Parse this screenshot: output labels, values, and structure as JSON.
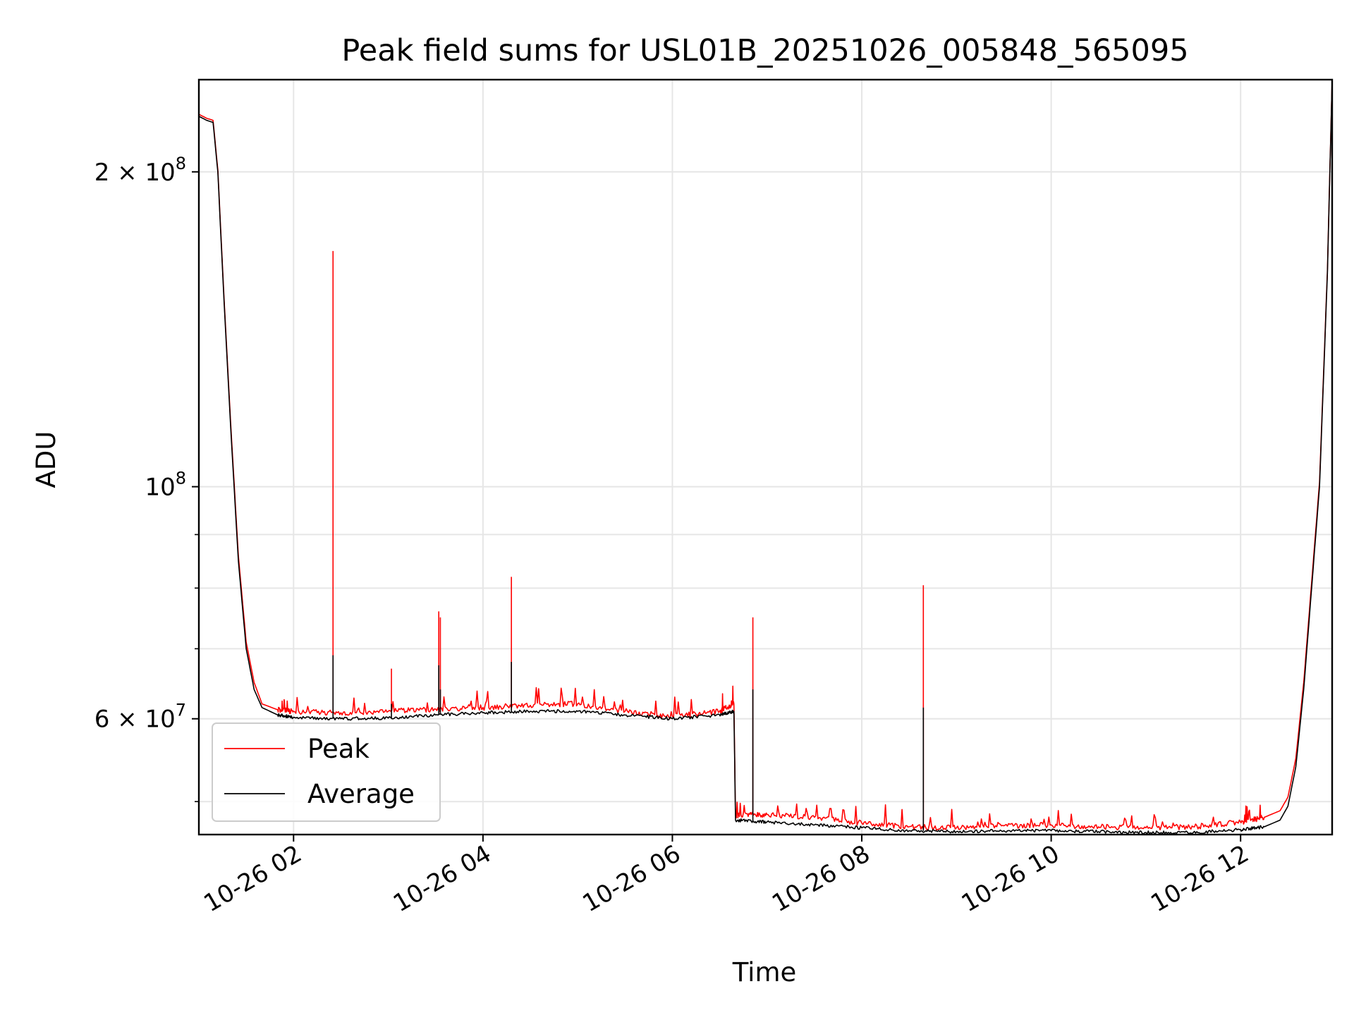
{
  "chart_data": {
    "type": "line",
    "title": "Peak field sums for USL01B_20251026_005848_565095",
    "xlabel": "Time",
    "ylabel": "ADU",
    "yscale": "log",
    "grid": true,
    "legend_placement": "lower-left",
    "xlim": [
      "2025-10-26 01:00",
      "2025-10-26 12:58"
    ],
    "ylim": [
      46500000,
      245000000
    ],
    "x_ticks": [
      {
        "value": "2025-10-26 02:00",
        "label": "10-26 02"
      },
      {
        "value": "2025-10-26 04:00",
        "label": "10-26 04"
      },
      {
        "value": "2025-10-26 06:00",
        "label": "10-26 06"
      },
      {
        "value": "2025-10-26 08:00",
        "label": "10-26 08"
      },
      {
        "value": "2025-10-26 10:00",
        "label": "10-26 10"
      },
      {
        "value": "2025-10-26 12:00",
        "label": "10-26 12"
      }
    ],
    "y_major_ticks": [
      {
        "value": 60000000,
        "base": "6",
        "exp": "7"
      },
      {
        "value": 100000000,
        "base": "",
        "exp": "8"
      },
      {
        "value": 200000000,
        "base": "2",
        "exp": "8"
      }
    ],
    "y_minor_ticks": [
      50000000,
      70000000,
      80000000,
      90000000,
      300000000
    ],
    "colors": {
      "peak": "#ff0000",
      "average": "#000000"
    },
    "series": [
      {
        "name": "Average",
        "key": "average",
        "x": [
          "2025-10-26 01:00",
          "2025-10-26 01:05",
          "2025-10-26 01:09",
          "2025-10-26 01:12",
          "2025-10-26 01:16",
          "2025-10-26 01:20",
          "2025-10-26 01:25",
          "2025-10-26 01:30",
          "2025-10-26 01:35",
          "2025-10-26 01:40",
          "2025-10-26 01:50",
          "2025-10-26 02:00",
          "2025-10-26 02:30",
          "2025-10-26 03:00",
          "2025-10-26 03:30",
          "2025-10-26 04:00",
          "2025-10-26 04:30",
          "2025-10-26 05:00",
          "2025-10-26 05:30",
          "2025-10-26 06:00",
          "2025-10-26 06:30",
          "2025-10-26 06:39",
          "2025-10-26 06:40",
          "2025-10-26 07:00",
          "2025-10-26 07:30",
          "2025-10-26 08:00",
          "2025-10-26 08:30",
          "2025-10-26 09:00",
          "2025-10-26 09:30",
          "2025-10-26 10:00",
          "2025-10-26 10:30",
          "2025-10-26 11:00",
          "2025-10-26 11:30",
          "2025-10-26 12:00",
          "2025-10-26 12:15",
          "2025-10-26 12:25",
          "2025-10-26 12:30",
          "2025-10-26 12:35",
          "2025-10-26 12:40",
          "2025-10-26 12:45",
          "2025-10-26 12:50",
          "2025-10-26 12:55",
          "2025-10-26 12:58"
        ],
        "values": [
          226000000,
          224000000,
          223000000,
          200000000,
          150000000,
          115000000,
          85000000,
          70000000,
          64000000,
          61500000,
          60500000,
          60200000,
          60000000,
          60100000,
          60500000,
          60800000,
          61000000,
          61000000,
          60500000,
          60000000,
          60500000,
          61000000,
          48000000,
          47800000,
          47500000,
          47200000,
          46900000,
          46800000,
          46900000,
          46900000,
          46800000,
          46700000,
          46700000,
          47000000,
          47300000,
          48000000,
          49500000,
          54000000,
          64000000,
          80000000,
          100000000,
          160000000,
          245000000
        ]
      },
      {
        "name": "Peak",
        "key": "peak",
        "x": [
          "2025-10-26 01:00",
          "2025-10-26 01:05",
          "2025-10-26 01:09",
          "2025-10-26 01:12",
          "2025-10-26 01:16",
          "2025-10-26 01:20",
          "2025-10-26 01:25",
          "2025-10-26 01:30",
          "2025-10-26 01:35",
          "2025-10-26 01:40",
          "2025-10-26 01:50",
          "2025-10-26 02:00",
          "2025-10-26 02:30",
          "2025-10-26 03:00",
          "2025-10-26 03:30",
          "2025-10-26 04:00",
          "2025-10-26 04:30",
          "2025-10-26 05:00",
          "2025-10-26 05:30",
          "2025-10-26 06:00",
          "2025-10-26 06:30",
          "2025-10-26 06:39",
          "2025-10-26 06:40",
          "2025-10-26 07:00",
          "2025-10-26 07:30",
          "2025-10-26 08:00",
          "2025-10-26 08:30",
          "2025-10-26 09:00",
          "2025-10-26 09:30",
          "2025-10-26 10:00",
          "2025-10-26 10:30",
          "2025-10-26 11:00",
          "2025-10-26 11:30",
          "2025-10-26 12:00",
          "2025-10-26 12:15",
          "2025-10-26 12:25",
          "2025-10-26 12:30",
          "2025-10-26 12:35",
          "2025-10-26 12:40",
          "2025-10-26 12:45",
          "2025-10-26 12:50",
          "2025-10-26 12:55",
          "2025-10-26 12:58"
        ],
        "values": [
          227000000,
          225000000,
          224000000,
          201000000,
          151000000,
          116000000,
          86000000,
          71000000,
          65000000,
          62000000,
          61200000,
          61000000,
          60800000,
          61000000,
          61300000,
          61500000,
          61800000,
          62000000,
          61000000,
          60300000,
          61000000,
          62000000,
          48500000,
          48600000,
          48300000,
          47700000,
          47300000,
          47200000,
          47400000,
          47500000,
          47300000,
          47200000,
          47300000,
          47800000,
          48300000,
          49000000,
          50500000,
          55000000,
          65000000,
          81000000,
          101000000,
          161000000,
          245000000
        ]
      }
    ],
    "spikes": [
      {
        "x": "2025-10-26 02:25",
        "peak": 168000000,
        "average": 69000000
      },
      {
        "x": "2025-10-26 03:02",
        "peak": 67000000,
        "average": 62000000
      },
      {
        "x": "2025-10-26 03:32",
        "peak": 76000000,
        "average": 67500000
      },
      {
        "x": "2025-10-26 03:33",
        "peak": 75000000,
        "average": 64000000
      },
      {
        "x": "2025-10-26 04:18",
        "peak": 82000000,
        "average": 68000000
      },
      {
        "x": "2025-10-26 06:51",
        "peak": 75000000,
        "average": 64000000
      },
      {
        "x": "2025-10-26 08:39",
        "peak": 80500000,
        "average": 61500000
      }
    ],
    "legend": [
      {
        "label": "Peak",
        "key": "peak"
      },
      {
        "label": "Average",
        "key": "average"
      }
    ]
  }
}
